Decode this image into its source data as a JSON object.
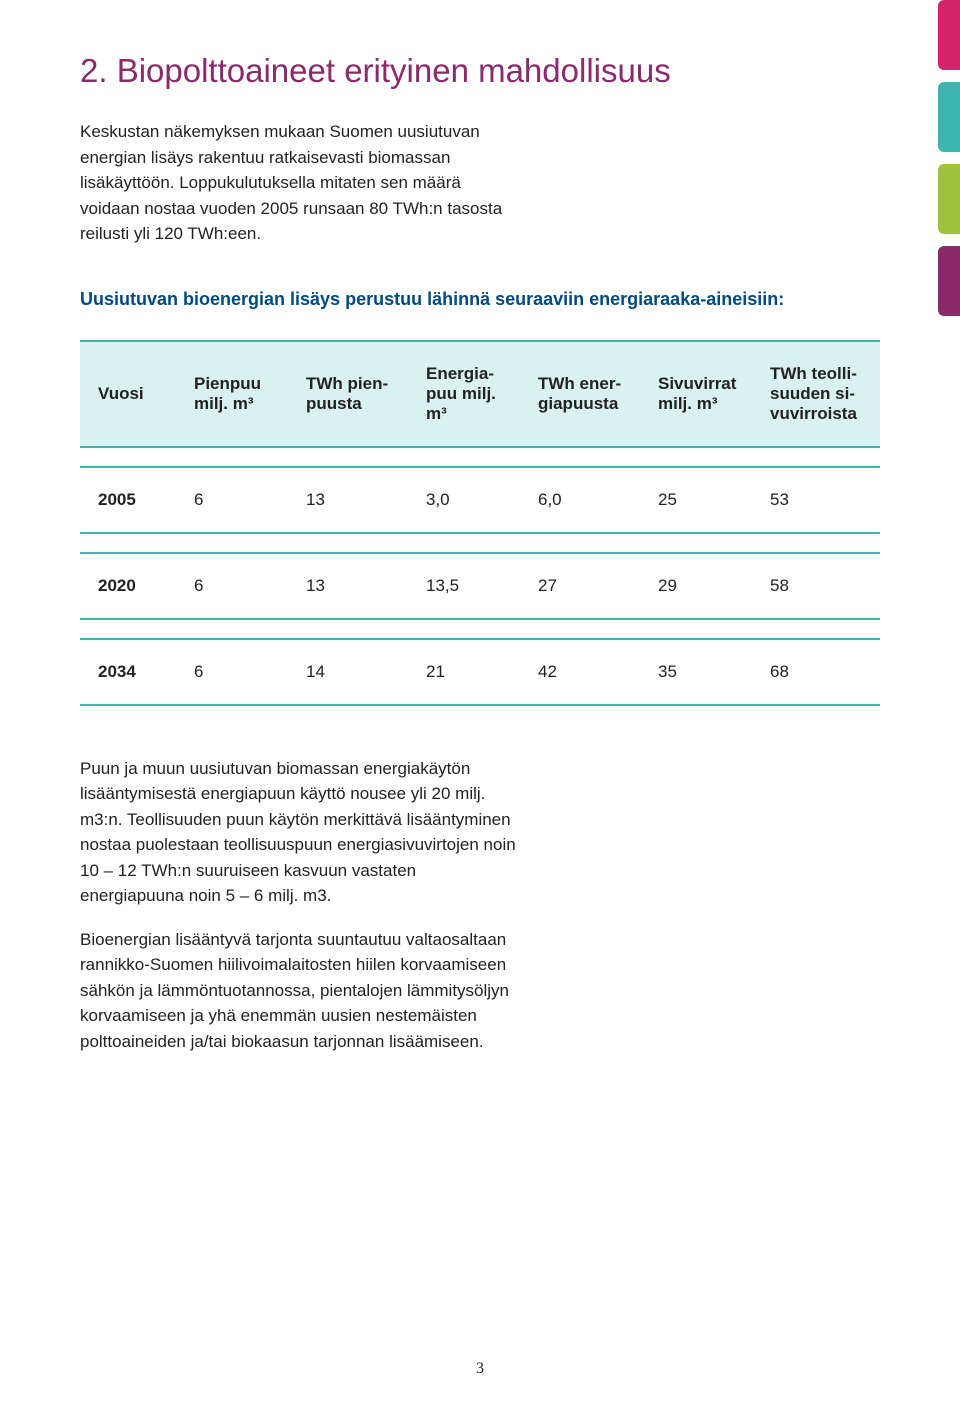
{
  "colors": {
    "title": "#8a2a6b",
    "body_text": "#222222",
    "subhead": "#004a82",
    "table_border": "#3bb7b0",
    "table_header_bg": "#d9f1ef",
    "page_bg": "#ffffff",
    "side_tabs": [
      "#d6246c",
      "#3bb7b0",
      "#9fc33b",
      "#8a2a6b"
    ]
  },
  "title": "2. Biopolttoaineet erityinen mahdollisuus",
  "intro_paragraphs": [
    "Keskustan näkemyksen mukaan Suomen uusiutuvan energian lisäys rakentuu ratkaisevasti biomassan lisäkäyttöön. Loppukulutuksella mitaten sen määrä voidaan nostaa vuoden 2005 runsaan 80 TWh:n tasosta reilusti yli 120 TWh:een."
  ],
  "subhead": "Uusiutuvan bioenergian lisäys perustuu lähinnä seuraaviin energiaraaka-aineisiin:",
  "table": {
    "columns": [
      "Vuosi",
      "Pienpuu milj. m³",
      "TWh pien­puusta",
      "Energia­puu milj. m³",
      "TWh ener­giapuusta",
      "Sivuvirrat milj. m³",
      "TWh teolli­suuden si­vuvirroista"
    ],
    "rows": [
      [
        "2005",
        "6",
        "13",
        "3,0",
        "6,0",
        "25",
        "53"
      ],
      [
        "2020",
        "6",
        "13",
        "13,5",
        "27",
        "29",
        "58"
      ],
      [
        "2034",
        "6",
        "14",
        "21",
        "42",
        "35",
        "68"
      ]
    ],
    "col_widths": [
      "12%",
      "14%",
      "15%",
      "14%",
      "15%",
      "14%",
      "16%"
    ]
  },
  "body_paragraphs": [
    "Puun ja muun uusiutuvan biomassan energiakäy­tön lisääntymisestä energiapuun käyttö nousee yli 20 milj. m3:n. Teollisuuden puun käytön merkittävä lisääntyminen nostaa puolestaan teollisuuspuun energiasivuvirtojen noin 10 – 12 TWh:n suuruiseen kasvuun vastaten energiapuuna noin 5 – 6 milj. m3.",
    "Bioenergian lisääntyvä tarjonta suuntautuu val­taosaltaan rannikko-Suomen hiilivoimalaitosten hiilen korvaamiseen sähkön ja lämmöntuotannos­sa, pientalojen lämmitysöljyn korvaamiseen ja yhä enemmän uusien nestemäisten polttoaineiden ja/tai biokaasun tarjonnan lisäämiseen."
  ],
  "page_number": "3"
}
